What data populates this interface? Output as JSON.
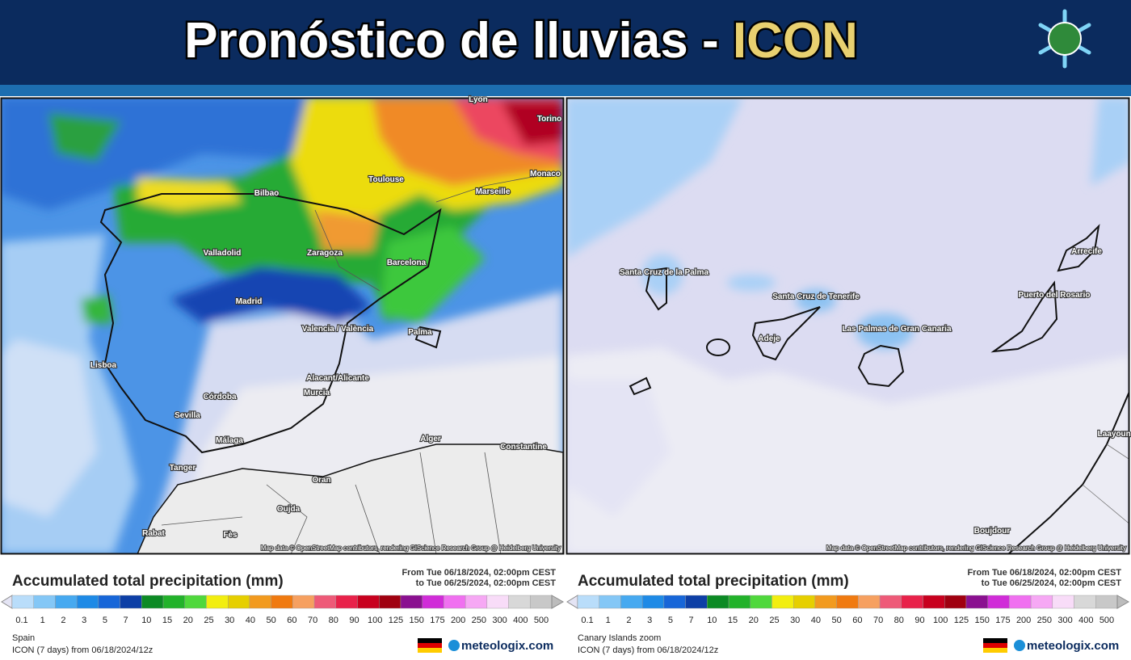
{
  "header": {
    "title_main": "Pronóstico de lluvias - ",
    "title_model": "ICON"
  },
  "legend": {
    "title": "Accumulated total precipitation (mm)",
    "from": "From Tue 06/18/2024, 02:00pm CEST",
    "to": "to Tue 06/25/2024, 02:00pm CEST",
    "levels": [
      0.1,
      1,
      2,
      3,
      5,
      7,
      10,
      15,
      20,
      25,
      30,
      40,
      50,
      60,
      70,
      80,
      90,
      100,
      125,
      150,
      175,
      200,
      250,
      300,
      400,
      500
    ],
    "colors": [
      "#e4e4f4",
      "#b9ddfa",
      "#84c7f6",
      "#46a9f0",
      "#1e8ae6",
      "#1766d8",
      "#0d3fa6",
      "#0c8a24",
      "#22b22a",
      "#4fd83c",
      "#f2ee10",
      "#e6cf00",
      "#f29a1e",
      "#f07a10",
      "#f6a060",
      "#ee5a78",
      "#e8224a",
      "#c8001e",
      "#a00010",
      "#8a1090",
      "#d02cd8",
      "#f070f0",
      "#f6a8f4",
      "#f8dcf8",
      "#d8d8d8",
      "#c8c8c8",
      "#bcbcbc"
    ],
    "model": "ICON (7 days) from 06/18/2024/12z",
    "brand": "meteologix.com",
    "attribution": "Map data © OpenStreetMap contributors, rendering GIScience Research Group @ Heidelberg University"
  },
  "panels": [
    {
      "region": "Spain",
      "places": [
        "Bilbao",
        "Toulouse",
        "Marseille",
        "Monaco",
        "Lyon",
        "Torino",
        "Valladolid",
        "Zaragoza",
        "Barcelona",
        "Madrid",
        "Valencia / València",
        "Palma",
        "Lisboa",
        "Alacant/Alicante",
        "Murcia",
        "Córdoba",
        "Sevilla",
        "Málaga",
        "Alger",
        "Constantine",
        "Tanger",
        "Oran",
        "Oujda",
        "Rabat",
        "Fès"
      ]
    },
    {
      "region": "Canary Islands zoom",
      "places": [
        "Santa Cruz de la Palma",
        "Santa Cruz de Tenerife",
        "Adeje",
        "Las Palmas de Gran Canaria",
        "Puerto del Rosario",
        "Arrecife",
        "Laayoune",
        "Boujdour"
      ]
    }
  ]
}
